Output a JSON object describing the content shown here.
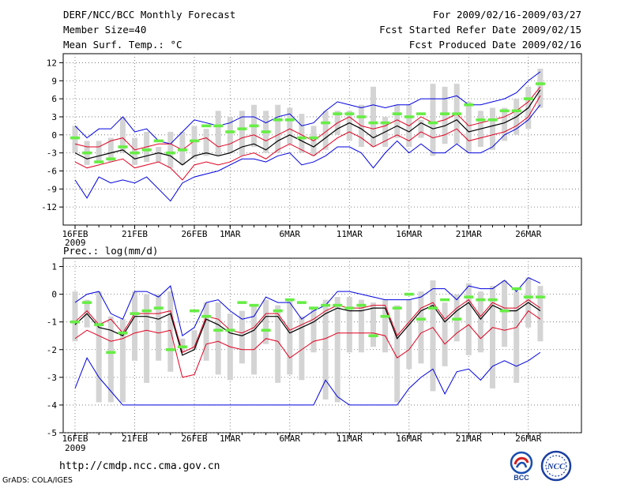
{
  "header": {
    "title": "DERF/NCC/BCC Monthly Forecast",
    "member_size": "Member Size=40",
    "variable": "Mean Surf. Temp.: °C",
    "period": "For 2009/02/16-2009/03/27",
    "refer_date": "Fcst Started Refer Date 2009/02/15",
    "produced_date": "Fcst Produced Date 2009/02/16"
  },
  "footer": {
    "url": "http://cmdp.ncc.cma.gov.cn",
    "credit": "GrADS: COLA/IGES",
    "logo_bcc_text": "BCC",
    "logo_ncc_text": "NCC"
  },
  "colors": {
    "max_min": "#0000e0",
    "spread": "#e00020",
    "mean": "#000000",
    "member": "#ff3030",
    "box": "#d4d4d4",
    "obs": "#66ee44"
  },
  "chart_data": [
    {
      "type": "line",
      "title": "Mean Surf. Temp.: °C",
      "x_start_date": "2009-02-16",
      "xtick_labels": [
        "16FEB\n2009",
        "21FEB",
        "26FEB",
        "1MAR",
        "6MAR",
        "11MAR",
        "16MAR",
        "21MAR",
        "26MAR"
      ],
      "xtick_days": [
        0,
        5,
        10,
        13,
        18,
        23,
        28,
        33,
        38
      ],
      "ylim": [
        -15,
        13.5
      ],
      "yticks": [
        12,
        9,
        6,
        3,
        0,
        -3,
        -6,
        -9,
        -12
      ],
      "series": [
        {
          "name": "max",
          "values": [
            1.5,
            -0.5,
            1,
            1,
            3,
            0.5,
            1,
            -1,
            -1.5,
            0.5,
            2.5,
            2,
            1.5,
            2,
            3,
            3,
            2,
            3,
            3.5,
            1.5,
            2,
            4,
            5.5,
            5,
            4.5,
            5,
            4.5,
            5,
            5,
            6,
            6,
            6,
            6.5,
            5,
            5,
            5.5,
            6,
            7,
            9,
            10.5
          ]
        },
        {
          "name": "upper",
          "values": [
            -1.5,
            -2,
            -2,
            -1,
            -0.5,
            -2.5,
            -2,
            -1.5,
            -1.5,
            -2.5,
            -1,
            -0.5,
            -2,
            -1.5,
            -0.5,
            0,
            -1,
            0,
            1,
            0,
            -1,
            0.5,
            2,
            3,
            1.5,
            1,
            1.5,
            2.5,
            1.5,
            3,
            2,
            2.5,
            3.5,
            1.5,
            2,
            2.5,
            3,
            4,
            5.5,
            8
          ]
        },
        {
          "name": "mean",
          "values": [
            -3,
            -4,
            -3.5,
            -3,
            -2.5,
            -4,
            -3.5,
            -3,
            -3.5,
            -5,
            -3.5,
            -3,
            -3.5,
            -3,
            -2,
            -1.5,
            -2.5,
            -1,
            0,
            -1,
            -2,
            -0.5,
            1,
            2,
            1,
            -0.5,
            0.5,
            1.5,
            0.5,
            2,
            1,
            1.5,
            2.5,
            0.5,
            1,
            1.5,
            2,
            3,
            4.5,
            7.5
          ]
        },
        {
          "name": "lower",
          "values": [
            -4.5,
            -5.5,
            -5,
            -4.5,
            -4,
            -5.5,
            -5,
            -4.5,
            -5.5,
            -7.5,
            -5,
            -4.5,
            -5,
            -4.5,
            -3.5,
            -3,
            -4,
            -2.5,
            -1.5,
            -2.5,
            -3.5,
            -2,
            -0.5,
            0.5,
            -0.5,
            -2,
            -1,
            0,
            -1,
            0.5,
            -0.5,
            0,
            1,
            -1,
            -0.5,
            0,
            0.5,
            1.5,
            3,
            6.5
          ]
        },
        {
          "name": "min",
          "values": [
            -7.5,
            -10.5,
            -7,
            -8,
            -7.5,
            -8,
            -7,
            -9,
            -11,
            -8,
            -7,
            -6.5,
            -6,
            -5,
            -4,
            -4,
            -4.5,
            -3.5,
            -3,
            -5,
            -4.5,
            -3.5,
            -2,
            -2,
            -3,
            -5.5,
            -3,
            -1,
            -3,
            -1.5,
            -3,
            -3,
            -1.5,
            -3,
            -3,
            -2,
            0,
            1,
            2.5,
            5
          ]
        }
      ],
      "boxes": {
        "low": [
          -3,
          -5,
          -4.5,
          -4.5,
          -3,
          -5,
          -4.5,
          -4.5,
          -5.5,
          -5,
          -4,
          -3.5,
          -3.5,
          -3,
          -3.5,
          -2,
          -3,
          -3,
          -1.5,
          -3,
          -3.5,
          -2.5,
          0,
          -1,
          -2,
          -2,
          -2,
          -0.5,
          -2,
          -0.5,
          -3.5,
          -1.5,
          -1.5,
          -3,
          -2,
          -2.5,
          -1,
          0,
          1,
          4.5
        ],
        "high": [
          1.5,
          -1,
          -1,
          -0.5,
          3,
          -0.5,
          0.5,
          -2,
          0.5,
          0.5,
          1.5,
          1,
          4,
          3,
          4,
          5,
          4,
          5,
          4.5,
          3.5,
          1.5,
          4,
          4,
          4,
          5,
          8,
          3,
          5,
          5,
          2.5,
          8.5,
          8,
          8.5,
          5.5,
          4,
          4.5,
          4.5,
          6,
          8,
          11
        ]
      },
      "obs": [
        -0.5,
        -3,
        -4.5,
        -4,
        -2,
        -3,
        -2.5,
        -1,
        -3,
        -2.5,
        -1,
        1.5,
        1.5,
        0.5,
        1,
        1.5,
        0.5,
        2.5,
        2.5,
        -0.5,
        -0.5,
        2,
        3.5,
        3.5,
        3,
        2,
        2,
        3.5,
        3,
        3.5,
        2,
        3.5,
        3.5,
        5,
        2.5,
        2.5,
        4,
        4,
        6,
        8.5
      ]
    },
    {
      "type": "line",
      "title": "Prec.: log(mm/d)",
      "x_start_date": "2009-02-16",
      "xtick_labels": [
        "16FEB\n2009",
        "21FEB",
        "26FEB",
        "1MAR",
        "6MAR",
        "11MAR",
        "16MAR",
        "21MAR",
        "26MAR"
      ],
      "xtick_days": [
        0,
        5,
        10,
        13,
        18,
        23,
        28,
        33,
        38
      ],
      "ylim": [
        -5,
        1.3
      ],
      "yticks": [
        1,
        0,
        -1,
        -2,
        -3,
        -4,
        -5
      ],
      "series": [
        {
          "name": "max",
          "values": [
            -0.3,
            0,
            0.1,
            -0.7,
            -0.9,
            0.1,
            0.1,
            -0.1,
            0.3,
            -1.5,
            -1.2,
            -0.3,
            -0.2,
            -0.6,
            -0.9,
            -0.8,
            -0.1,
            -0.3,
            -0.3,
            -0.9,
            -0.6,
            -0.4,
            0.1,
            0.1,
            0,
            -0.1,
            -0.2,
            -0.2,
            -0.2,
            -0.1,
            0.2,
            0.2,
            -0.2,
            0.3,
            0.2,
            0.2,
            0.5,
            0.1,
            0.6,
            0.4
          ]
        },
        {
          "name": "upper",
          "values": [
            -1,
            -0.6,
            -1.1,
            -0.9,
            -1.4,
            -0.7,
            -0.7,
            -0.7,
            -0.6,
            -2.1,
            -1.9,
            -0.8,
            -0.9,
            -1.3,
            -1.4,
            -1.2,
            -0.7,
            -0.7,
            -1.3,
            -1.1,
            -0.9,
            -0.6,
            -0.4,
            -0.5,
            -0.5,
            -0.4,
            -0.4,
            -1.5,
            -1,
            -0.5,
            -0.3,
            -0.9,
            -0.5,
            -0.2,
            -0.8,
            -0.3,
            -0.5,
            -0.5,
            -0.2,
            -0.5
          ]
        },
        {
          "name": "mean",
          "values": [
            -1.1,
            -0.7,
            -1.2,
            -1.3,
            -1.5,
            -0.8,
            -0.8,
            -0.9,
            -0.7,
            -2.2,
            -2,
            -0.9,
            -1.1,
            -1.4,
            -1.5,
            -1.3,
            -0.8,
            -0.8,
            -1.4,
            -1.2,
            -1,
            -0.7,
            -0.5,
            -0.6,
            -0.6,
            -0.5,
            -0.5,
            -1.6,
            -1.1,
            -0.6,
            -0.4,
            -1,
            -0.6,
            -0.3,
            -0.9,
            -0.4,
            -0.6,
            -0.6,
            -0.3,
            -0.6
          ]
        },
        {
          "name": "lower",
          "values": [
            -1.6,
            -1.3,
            -1.5,
            -1.7,
            -1.6,
            -1.4,
            -1.3,
            -1.4,
            -1.3,
            -3,
            -2.9,
            -1.8,
            -1.7,
            -1.9,
            -2,
            -2,
            -1.6,
            -1.7,
            -2.3,
            -2,
            -1.7,
            -1.6,
            -1.4,
            -1.4,
            -1.4,
            -1.4,
            -1.5,
            -2.3,
            -2,
            -1.4,
            -1.2,
            -1.8,
            -1.4,
            -1.1,
            -1.6,
            -1.2,
            -1.3,
            -1.2,
            -0.6,
            -0.9
          ]
        },
        {
          "name": "min",
          "values": [
            -3.4,
            -2.3,
            -3,
            -3.5,
            -4,
            -4,
            -4,
            -4,
            -4,
            -4,
            -4,
            -4,
            -4,
            -4,
            -4,
            -4,
            -4,
            -4,
            -4,
            -4,
            -4,
            -3.1,
            -3.7,
            -4,
            -4,
            -4,
            -4,
            -4,
            -3.4,
            -3,
            -2.7,
            -3.6,
            -2.8,
            -2.7,
            -3.1,
            -2.6,
            -2.4,
            -2.6,
            -2.4,
            -2.1
          ]
        }
      ],
      "boxes": {
        "low": [
          -1.7,
          -1.2,
          -3.9,
          -3.9,
          -3.9,
          -2.4,
          -3.2,
          -2.4,
          -2.8,
          -2.1,
          -2,
          -2.4,
          -2.9,
          -3.1,
          -2.5,
          -2.9,
          -1.8,
          -3.2,
          -2.9,
          -3.1,
          -2.1,
          -3.8,
          -3.9,
          -2.1,
          -2.1,
          -1.9,
          -2.1,
          -3.9,
          -2.7,
          -2.5,
          -3.5,
          -2.6,
          -1.7,
          -2.2,
          -2.1,
          -3.4,
          -1.9,
          -3.2,
          -1.2,
          -1.7
        ],
        "high": [
          0.1,
          -0.2,
          0.1,
          -0.8,
          -0.9,
          0.1,
          0,
          0,
          0.1,
          -1.6,
          -1.3,
          -0.3,
          -0.3,
          -0.7,
          -0.6,
          -0.4,
          -0.2,
          -0.4,
          -0.2,
          -0.8,
          -0.5,
          -0.2,
          -0.1,
          -0.1,
          -0.2,
          -0.3,
          -0.2,
          -0.4,
          -0.2,
          0.1,
          0.5,
          -0.3,
          0,
          0.4,
          0.1,
          0.3,
          0.5,
          0.1,
          0.6,
          0.3
        ]
      },
      "obs": [
        -1,
        -0.3,
        -1.1,
        -2.1,
        -1.4,
        -0.7,
        -0.6,
        -0.5,
        -2,
        -1.9,
        -0.6,
        -0.8,
        -1.3,
        -1.3,
        -0.3,
        -0.4,
        -1.3,
        -0.6,
        -0.2,
        -0.3,
        -0.5,
        -0.4,
        -0.4,
        -0.5,
        -0.4,
        -1.5,
        -0.8,
        -0.5,
        0,
        -0.9,
        -0.5,
        -0.2,
        -0.9,
        -0.1,
        -0.2,
        -0.2,
        -0.6,
        0.2,
        -0.1,
        -0.1
      ]
    }
  ]
}
